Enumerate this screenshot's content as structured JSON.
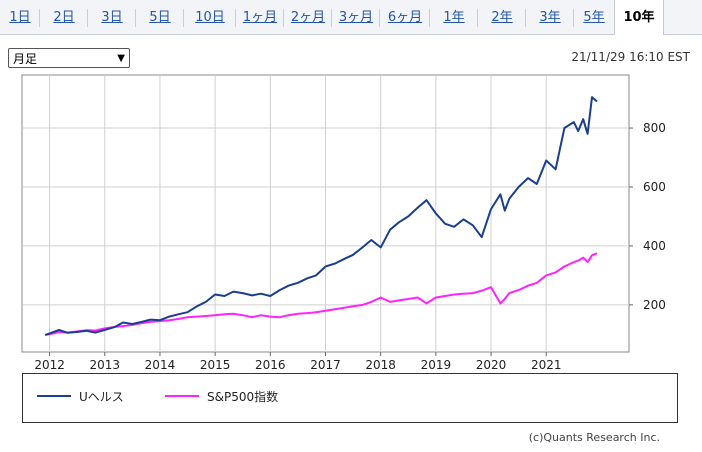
{
  "tabs": [
    {
      "label": "1日",
      "active": false
    },
    {
      "label": "2日",
      "active": false
    },
    {
      "label": "3日",
      "active": false
    },
    {
      "label": "5日",
      "active": false
    },
    {
      "label": "10日",
      "active": false
    },
    {
      "label": "1ヶ月",
      "active": false
    },
    {
      "label": "2ヶ月",
      "active": false
    },
    {
      "label": "3ヶ月",
      "active": false
    },
    {
      "label": "6ヶ月",
      "active": false
    },
    {
      "label": "1年",
      "active": false
    },
    {
      "label": "2年",
      "active": false
    },
    {
      "label": "3年",
      "active": false
    },
    {
      "label": "5年",
      "active": false
    },
    {
      "label": "10年",
      "active": true
    }
  ],
  "period_select": {
    "value": "月足"
  },
  "timestamp": "21/11/29 16:10 EST",
  "credit": "(c)Quants Research Inc.",
  "chart_data": {
    "type": "line",
    "x_ticks": [
      "2012",
      "2013",
      "2014",
      "2015",
      "2016",
      "2017",
      "2018",
      "2019",
      "2020",
      "2021"
    ],
    "y_ticks": [
      200,
      400,
      600,
      800
    ],
    "ylim": [
      40,
      980
    ],
    "xlim": [
      2011.5,
      2022.5
    ],
    "grid": true,
    "legend_position": "bottom",
    "series": [
      {
        "name": "Uヘルス",
        "color": "#1a3f8f",
        "x": [
          2011.92,
          2012.0,
          2012.17,
          2012.33,
          2012.5,
          2012.67,
          2012.83,
          2013.0,
          2013.17,
          2013.33,
          2013.5,
          2013.67,
          2013.83,
          2014.0,
          2014.17,
          2014.33,
          2014.5,
          2014.67,
          2014.83,
          2015.0,
          2015.17,
          2015.33,
          2015.5,
          2015.67,
          2015.83,
          2016.0,
          2016.17,
          2016.33,
          2016.5,
          2016.67,
          2016.83,
          2017.0,
          2017.17,
          2017.33,
          2017.5,
          2017.67,
          2017.83,
          2018.0,
          2018.17,
          2018.33,
          2018.5,
          2018.67,
          2018.83,
          2019.0,
          2019.17,
          2019.33,
          2019.5,
          2019.67,
          2019.83,
          2020.0,
          2020.17,
          2020.25,
          2020.33,
          2020.5,
          2020.67,
          2020.83,
          2021.0,
          2021.17,
          2021.33,
          2021.5,
          2021.58,
          2021.67,
          2021.75,
          2021.83,
          2021.92
        ],
        "values": [
          98,
          103,
          115,
          105,
          108,
          112,
          106,
          115,
          124,
          140,
          135,
          142,
          150,
          148,
          160,
          168,
          175,
          195,
          210,
          235,
          230,
          245,
          240,
          232,
          238,
          230,
          250,
          265,
          275,
          290,
          300,
          330,
          340,
          355,
          370,
          395,
          420,
          395,
          455,
          480,
          500,
          530,
          555,
          510,
          475,
          465,
          490,
          470,
          430,
          525,
          575,
          520,
          560,
          600,
          630,
          610,
          690,
          660,
          800,
          820,
          790,
          830,
          780,
          905,
          890
        ]
      },
      {
        "name": "S&P500指数",
        "color": "#ff22ff",
        "x": [
          2011.92,
          2012.0,
          2012.17,
          2012.33,
          2012.5,
          2012.67,
          2012.83,
          2013.0,
          2013.17,
          2013.33,
          2013.5,
          2013.67,
          2013.83,
          2014.0,
          2014.17,
          2014.33,
          2014.5,
          2014.67,
          2014.83,
          2015.0,
          2015.17,
          2015.33,
          2015.5,
          2015.67,
          2015.83,
          2016.0,
          2016.17,
          2016.33,
          2016.5,
          2016.67,
          2016.83,
          2017.0,
          2017.17,
          2017.33,
          2017.5,
          2017.67,
          2017.83,
          2018.0,
          2018.17,
          2018.33,
          2018.5,
          2018.67,
          2018.83,
          2019.0,
          2019.17,
          2019.33,
          2019.5,
          2019.67,
          2019.83,
          2020.0,
          2020.17,
          2020.25,
          2020.33,
          2020.5,
          2020.67,
          2020.83,
          2021.0,
          2021.17,
          2021.33,
          2021.5,
          2021.58,
          2021.67,
          2021.75,
          2021.83,
          2021.92
        ],
        "values": [
          98,
          100,
          108,
          106,
          110,
          114,
          113,
          120,
          125,
          128,
          132,
          138,
          142,
          145,
          148,
          152,
          158,
          160,
          162,
          165,
          168,
          170,
          165,
          158,
          165,
          160,
          158,
          165,
          170,
          172,
          175,
          180,
          185,
          190,
          195,
          200,
          210,
          225,
          210,
          215,
          220,
          225,
          205,
          225,
          230,
          235,
          238,
          240,
          248,
          260,
          205,
          220,
          240,
          250,
          265,
          275,
          300,
          310,
          330,
          345,
          350,
          360,
          345,
          368,
          375
        ]
      }
    ]
  }
}
